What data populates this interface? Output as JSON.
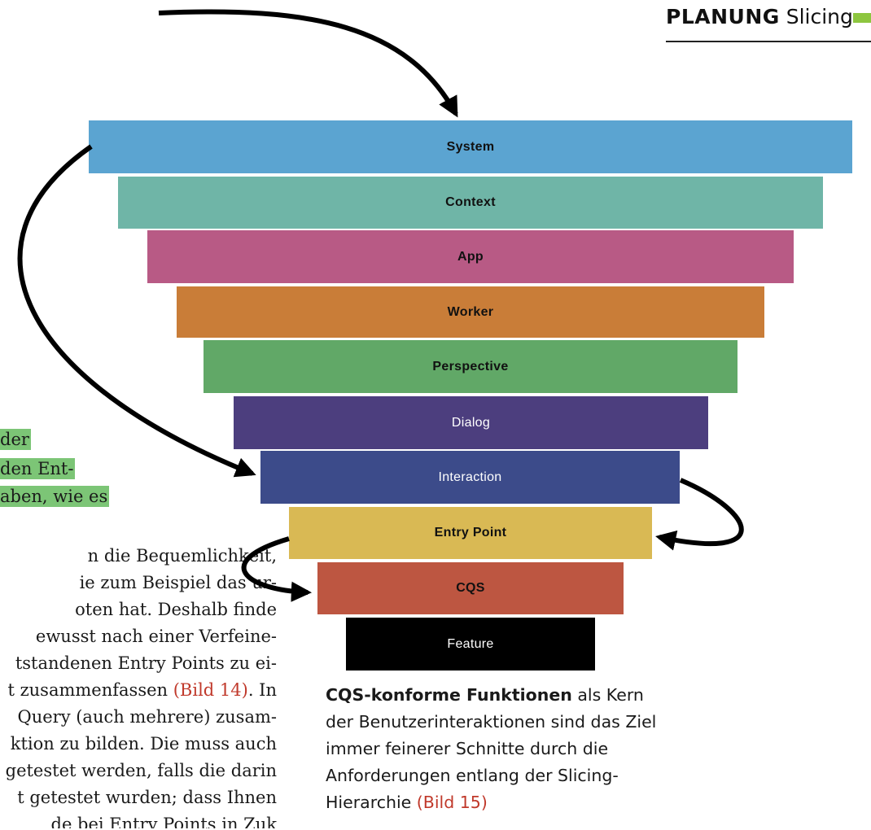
{
  "header": {
    "section": "PLANUNG",
    "topic": "Slicing",
    "accent_color": "#8dc63f"
  },
  "funnel": [
    {
      "label": "System",
      "color": "#5ba4d1",
      "text_color": "#111111",
      "bold": true
    },
    {
      "label": "Context",
      "color": "#6fb5a7",
      "text_color": "#111111",
      "bold": true
    },
    {
      "label": "App",
      "color": "#b85a85",
      "text_color": "#111111",
      "bold": true
    },
    {
      "label": "Worker",
      "color": "#c97d38",
      "text_color": "#111111",
      "bold": true
    },
    {
      "label": "Perspective",
      "color": "#61a867",
      "text_color": "#111111",
      "bold": true
    },
    {
      "label": "Dialog",
      "color": "#4c3e7e",
      "text_color": "#ffffff",
      "bold": false
    },
    {
      "label": "Interaction",
      "color": "#3c4b8a",
      "text_color": "#ffffff",
      "bold": false
    },
    {
      "label": "Entry Point",
      "color": "#d9b954",
      "text_color": "#111111",
      "bold": true
    },
    {
      "label": "CQS",
      "color": "#bd5641",
      "text_color": "#111111",
      "bold": true
    },
    {
      "label": "Feature",
      "color": "#000000",
      "text_color": "#ffffff",
      "bold": false
    }
  ],
  "highlighted_lines": [
    "der",
    "den Ent-",
    "aben, wie es"
  ],
  "body_lines": [
    {
      "text": "n die Bequemlichkeit,",
      "ref": "",
      "after": ""
    },
    {
      "text": "ie zum Beispiel das ur-",
      "ref": "",
      "after": ""
    },
    {
      "text": "oten hat. Deshalb finde",
      "ref": "",
      "after": ""
    },
    {
      "text": "ewusst nach einer Verfeine-",
      "ref": "",
      "after": ""
    },
    {
      "text": "tstandenen Entry Points zu ei-",
      "ref": "",
      "after": ""
    },
    {
      "text": "t zusammenfassen ",
      "ref": "(Bild 14)",
      "after": ". In"
    },
    {
      "text": "Query (auch mehrere) zusam-",
      "ref": "",
      "after": ""
    },
    {
      "text": "ktion zu bilden. Die muss auch",
      "ref": "",
      "after": ""
    },
    {
      "text": "getestet werden, falls die darin",
      "ref": "",
      "after": ""
    },
    {
      "text": "t getestet wurden; dass Ihnen",
      "ref": "",
      "after": ""
    },
    {
      "text": "de bei Entry Points in Zuk",
      "ref": "",
      "after": ""
    }
  ],
  "caption": {
    "bold": "CQS-konforme Funktionen",
    "text": " als Kern der Benutzerinteraktionen sind das Ziel immer feinerer Schnitte durch die Anforderungen entlang der Slicing-Hierarchie ",
    "ref": "(Bild 15)"
  }
}
